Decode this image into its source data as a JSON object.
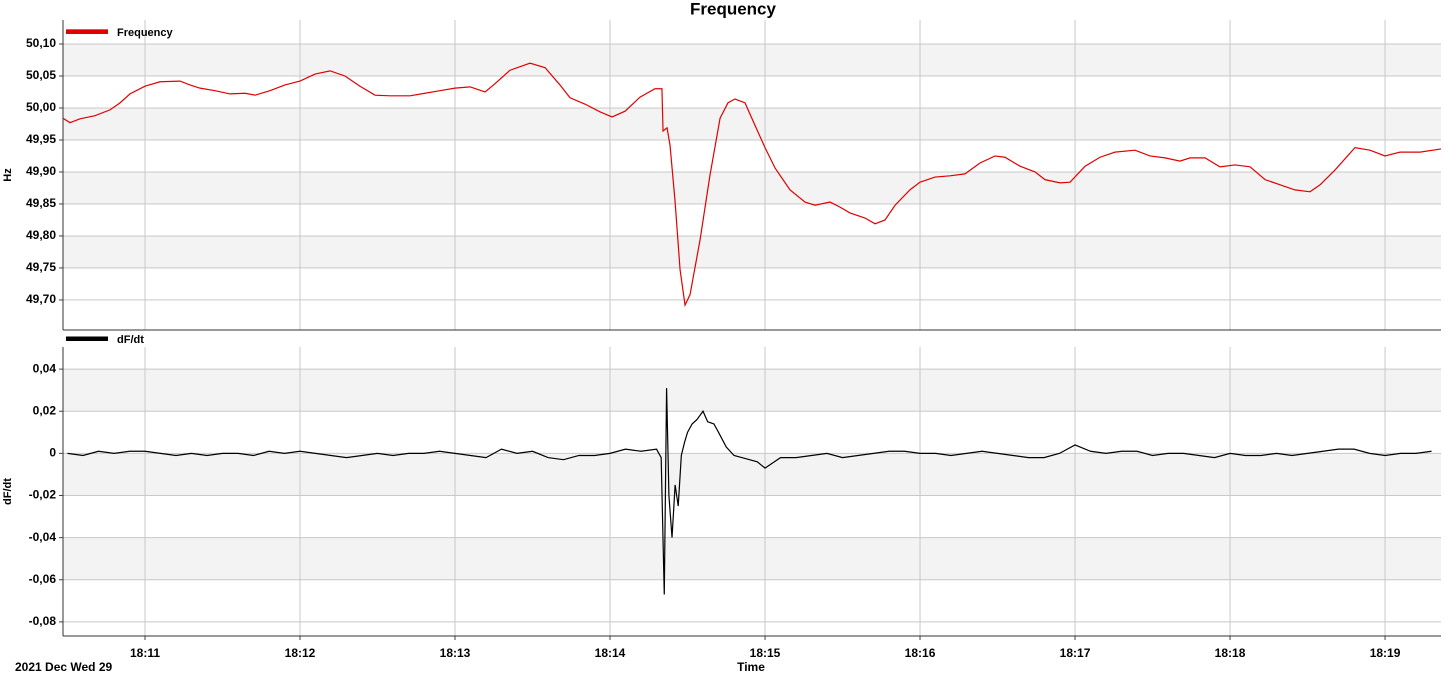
{
  "chart_data": [
    {
      "type": "line",
      "title": "Frequency",
      "ylabel": "Hz",
      "legend": "upper left",
      "grid": true,
      "xlim": [
        1090.471,
        1099.361
      ],
      "ylim": [
        49.653,
        50.1375
      ],
      "yticks": [
        {
          "value": 50.1,
          "label": "50,10"
        },
        {
          "value": 50.05,
          "label": "50,05"
        },
        {
          "value": 50.0,
          "label": "50,00"
        },
        {
          "value": 49.95,
          "label": "49,95"
        },
        {
          "value": 49.9,
          "label": "49,90"
        },
        {
          "value": 49.85,
          "label": "49,85"
        },
        {
          "value": 49.8,
          "label": "49,80"
        },
        {
          "value": 49.75,
          "label": "49,75"
        },
        {
          "value": 49.7,
          "label": "49,70"
        }
      ],
      "x": [
        1090.471,
        1090.516,
        1090.581,
        1090.677,
        1090.774,
        1090.839,
        1090.903,
        1091,
        1091.097,
        1091.226,
        1091.29,
        1091.355,
        1091.452,
        1091.548,
        1091.645,
        1091.71,
        1091.806,
        1091.903,
        1092,
        1092.097,
        1092.194,
        1092.29,
        1092.387,
        1092.484,
        1092.581,
        1092.71,
        1092.806,
        1092.903,
        1093,
        1093.097,
        1093.194,
        1093.258,
        1093.355,
        1093.484,
        1093.581,
        1093.677,
        1093.742,
        1093.839,
        1093.935,
        1094.013,
        1094.097,
        1094.194,
        1094.29,
        1094.335,
        1094.342,
        1094.368,
        1094.387,
        1094.419,
        1094.452,
        1094.484,
        1094.516,
        1094.581,
        1094.645,
        1094.71,
        1094.761,
        1094.806,
        1094.871,
        1094.935,
        1095,
        1095.065,
        1095.161,
        1095.258,
        1095.323,
        1095.419,
        1095.484,
        1095.548,
        1095.645,
        1095.71,
        1095.774,
        1095.839,
        1095.935,
        1096,
        1096.097,
        1096.194,
        1096.29,
        1096.387,
        1096.484,
        1096.548,
        1096.645,
        1096.742,
        1096.806,
        1096.903,
        1096.968,
        1097.065,
        1097.161,
        1097.258,
        1097.387,
        1097.484,
        1097.581,
        1097.677,
        1097.742,
        1097.839,
        1097.935,
        1098.032,
        1098.129,
        1098.226,
        1098.323,
        1098.419,
        1098.516,
        1098.581,
        1098.677,
        1098.806,
        1098.903,
        1099,
        1099.097,
        1099.226,
        1099.361
      ],
      "series": [
        {
          "name": "Frequency",
          "color": "#e00000",
          "values": [
            49.984,
            49.977,
            49.983,
            49.988,
            49.997,
            50.008,
            50.022,
            50.034,
            50.041,
            50.042,
            50.036,
            50.031,
            50.027,
            50.022,
            50.023,
            50.02,
            50.027,
            50.036,
            50.042,
            50.053,
            50.058,
            50.05,
            50.034,
            50.02,
            50.019,
            50.019,
            50.023,
            50.027,
            50.031,
            50.033,
            50.025,
            50.038,
            50.059,
            50.07,
            50.063,
            50.036,
            50.016,
            50.006,
            49.994,
            49.986,
            49.995,
            50.017,
            50.03,
            50.03,
            49.964,
            49.969,
            49.942,
            49.856,
            49.747,
            49.692,
            49.708,
            49.794,
            49.895,
            49.984,
            50.008,
            50.014,
            50.008,
            49.973,
            49.938,
            49.906,
            49.872,
            49.853,
            49.848,
            49.853,
            49.845,
            49.836,
            49.828,
            49.819,
            49.825,
            49.848,
            49.872,
            49.884,
            49.892,
            49.894,
            49.897,
            49.914,
            49.925,
            49.923,
            49.909,
            49.9,
            49.888,
            49.883,
            49.884,
            49.909,
            49.923,
            49.931,
            49.934,
            49.925,
            49.922,
            49.917,
            49.922,
            49.922,
            49.908,
            49.911,
            49.908,
            49.888,
            49.88,
            49.872,
            49.869,
            49.88,
            49.903,
            49.938,
            49.934,
            49.925,
            49.931,
            49.931,
            49.936
          ]
        }
      ]
    },
    {
      "type": "line",
      "ylabel": "dF/dt",
      "xlabel": "Time",
      "date_label": "2021 Dec Wed 29",
      "legend": "upper left",
      "grid": true,
      "xlim": [
        1090.471,
        1099.361
      ],
      "xticks": [
        {
          "value": 1091,
          "label": "18:11"
        },
        {
          "value": 1092,
          "label": "18:12"
        },
        {
          "value": 1093,
          "label": "18:13"
        },
        {
          "value": 1094,
          "label": "18:14"
        },
        {
          "value": 1095,
          "label": "18:15"
        },
        {
          "value": 1096,
          "label": "18:16"
        },
        {
          "value": 1097,
          "label": "18:17"
        },
        {
          "value": 1098,
          "label": "18:18"
        },
        {
          "value": 1099,
          "label": "18:19"
        }
      ],
      "ylim": [
        -0.0867,
        0.0505
      ],
      "yticks": [
        {
          "value": 0.04,
          "label": "0,04"
        },
        {
          "value": 0.02,
          "label": "0,02"
        },
        0,
        {
          "value": -0.02,
          "label": "-0,02"
        },
        {
          "value": -0.04,
          "label": "-0,04"
        },
        {
          "value": -0.06,
          "label": "-0,06"
        },
        {
          "value": -0.08,
          "label": "-0,08"
        }
      ],
      "x": [
        1090.5,
        1090.6,
        1090.7,
        1090.8,
        1090.9,
        1091.0,
        1091.1,
        1091.2,
        1091.3,
        1091.4,
        1091.5,
        1091.6,
        1091.7,
        1091.8,
        1091.9,
        1092.0,
        1092.1,
        1092.2,
        1092.3,
        1092.4,
        1092.5,
        1092.6,
        1092.7,
        1092.8,
        1092.9,
        1093.0,
        1093.1,
        1093.2,
        1093.3,
        1093.4,
        1093.5,
        1093.6,
        1093.7,
        1093.8,
        1093.9,
        1094.0,
        1094.1,
        1094.2,
        1094.3,
        1094.33,
        1094.35,
        1094.365,
        1094.38,
        1094.4,
        1094.42,
        1094.44,
        1094.46,
        1094.48,
        1094.5,
        1094.53,
        1094.56,
        1094.6,
        1094.63,
        1094.67,
        1094.7,
        1094.75,
        1094.8,
        1094.85,
        1094.9,
        1094.95,
        1095.0,
        1095.1,
        1095.2,
        1095.3,
        1095.4,
        1095.5,
        1095.6,
        1095.7,
        1095.8,
        1095.9,
        1096.0,
        1096.1,
        1096.2,
        1096.3,
        1096.4,
        1096.5,
        1096.6,
        1096.7,
        1096.8,
        1096.9,
        1097.0,
        1097.1,
        1097.2,
        1097.3,
        1097.4,
        1097.5,
        1097.6,
        1097.7,
        1097.8,
        1097.9,
        1098.0,
        1098.1,
        1098.2,
        1098.3,
        1098.4,
        1098.5,
        1098.6,
        1098.7,
        1098.8,
        1098.9,
        1099.0,
        1099.1,
        1099.2,
        1099.3
      ],
      "series": [
        {
          "name": "dF/dt",
          "color": "#000000",
          "values": [
            0,
            -0.001,
            0.001,
            0,
            0.001,
            0.001,
            0,
            -0.001,
            0,
            -0.001,
            0,
            0,
            -0.001,
            0.001,
            0,
            0.001,
            0,
            -0.001,
            -0.002,
            -0.001,
            0,
            -0.001,
            0,
            0,
            0.001,
            0,
            -0.001,
            -0.002,
            0.002,
            0,
            0.001,
            -0.002,
            -0.003,
            -0.001,
            -0.001,
            0,
            0.002,
            0.001,
            0.002,
            -0.002,
            -0.067,
            0.031,
            -0.02,
            -0.04,
            -0.015,
            -0.025,
            -0.001,
            0.005,
            0.01,
            0.014,
            0.016,
            0.02,
            0.015,
            0.014,
            0.01,
            0.003,
            -0.001,
            -0.002,
            -0.003,
            -0.004,
            -0.007,
            -0.002,
            -0.002,
            -0.001,
            0,
            -0.002,
            -0.001,
            0,
            0.001,
            0.001,
            0,
            0,
            -0.001,
            0,
            0.001,
            0,
            -0.001,
            -0.002,
            -0.002,
            0,
            0.004,
            0.001,
            0,
            0.001,
            0.001,
            -0.001,
            0,
            0,
            -0.001,
            -0.002,
            0,
            -0.001,
            -0.001,
            0,
            -0.001,
            0,
            0.001,
            0.002,
            0.002,
            0,
            -0.001,
            0,
            0,
            0.001
          ]
        }
      ]
    }
  ]
}
